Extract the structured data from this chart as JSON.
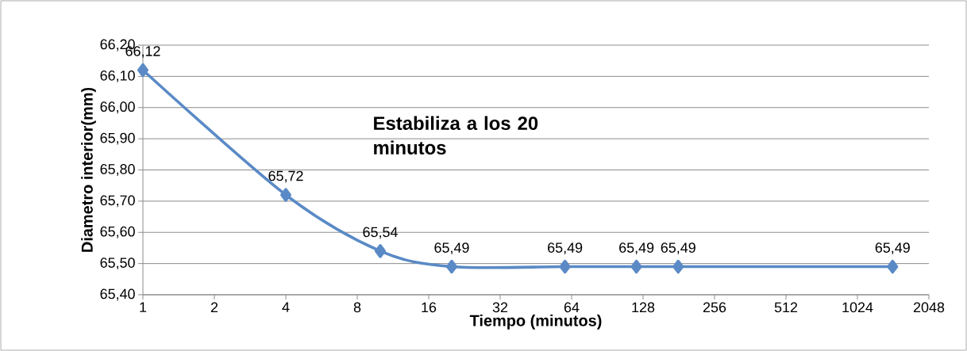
{
  "chart_data": {
    "type": "line",
    "xlabel": "Tiempo (minutos)",
    "ylabel": "Diametro interior(mm)",
    "annotations": [
      "Estabiliza a los 20 minutos"
    ],
    "x": [
      1,
      4,
      10,
      20,
      60,
      120,
      180,
      1440
    ],
    "series": [
      {
        "color": "#5a8ac6",
        "values": [
          66.12,
          65.72,
          65.54,
          65.49,
          65.49,
          65.49,
          65.49,
          65.49
        ],
        "value_labels": [
          "66,12",
          "65,72",
          "65,54",
          "65,49",
          "65,49",
          "65,49",
          "65,49",
          "65,49"
        ]
      }
    ],
    "log": "x",
    "xlim": [
      1,
      2048
    ],
    "xticks": [
      1,
      2,
      4,
      8,
      16,
      32,
      64,
      128,
      256,
      512,
      1024,
      2048
    ],
    "ylim": [
      65.4,
      66.2
    ],
    "yticks": [
      {
        "value": 65.4,
        "label": "65,40"
      },
      {
        "value": 65.5,
        "label": "65,50"
      },
      {
        "value": 65.6,
        "label": "65,60"
      },
      {
        "value": 65.7,
        "label": "65,70"
      },
      {
        "value": 65.8,
        "label": "65,80"
      },
      {
        "value": 65.9,
        "label": "65,90"
      },
      {
        "value": 66.0,
        "label": "66,00"
      },
      {
        "value": 66.1,
        "label": "66,10"
      },
      {
        "value": 66.2,
        "label": "66,20"
      }
    ],
    "grid": "y",
    "marker": "diamond",
    "line_style": "solid"
  }
}
